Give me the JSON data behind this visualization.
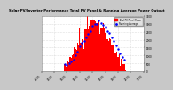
{
  "title": "Solar PV/Inverter Performance Total PV Panel & Running Average Power Output",
  "bg_color": "#c8c8c8",
  "plot_bg": "#ffffff",
  "grid_color": "#aaaaaa",
  "bar_color": "#ff0000",
  "line_color": "#0000ff",
  "ylim": [
    0,
    3500
  ],
  "xlim": [
    0,
    96
  ],
  "n_points": 97,
  "ytick_labels": [
    "0",
    "500",
    "1000",
    "1500",
    "2000",
    "2500",
    "3000",
    "3500"
  ],
  "ytick_values": [
    0,
    500,
    1000,
    1500,
    2000,
    2500,
    3000,
    3500
  ],
  "time_labels": [
    "00:00",
    "03:00",
    "06:00",
    "09:00",
    "12:00",
    "15:00",
    "18:00",
    "21:00",
    "24:00"
  ],
  "legend_red": "Total PV Panel Power",
  "legend_blue": "Running Average"
}
